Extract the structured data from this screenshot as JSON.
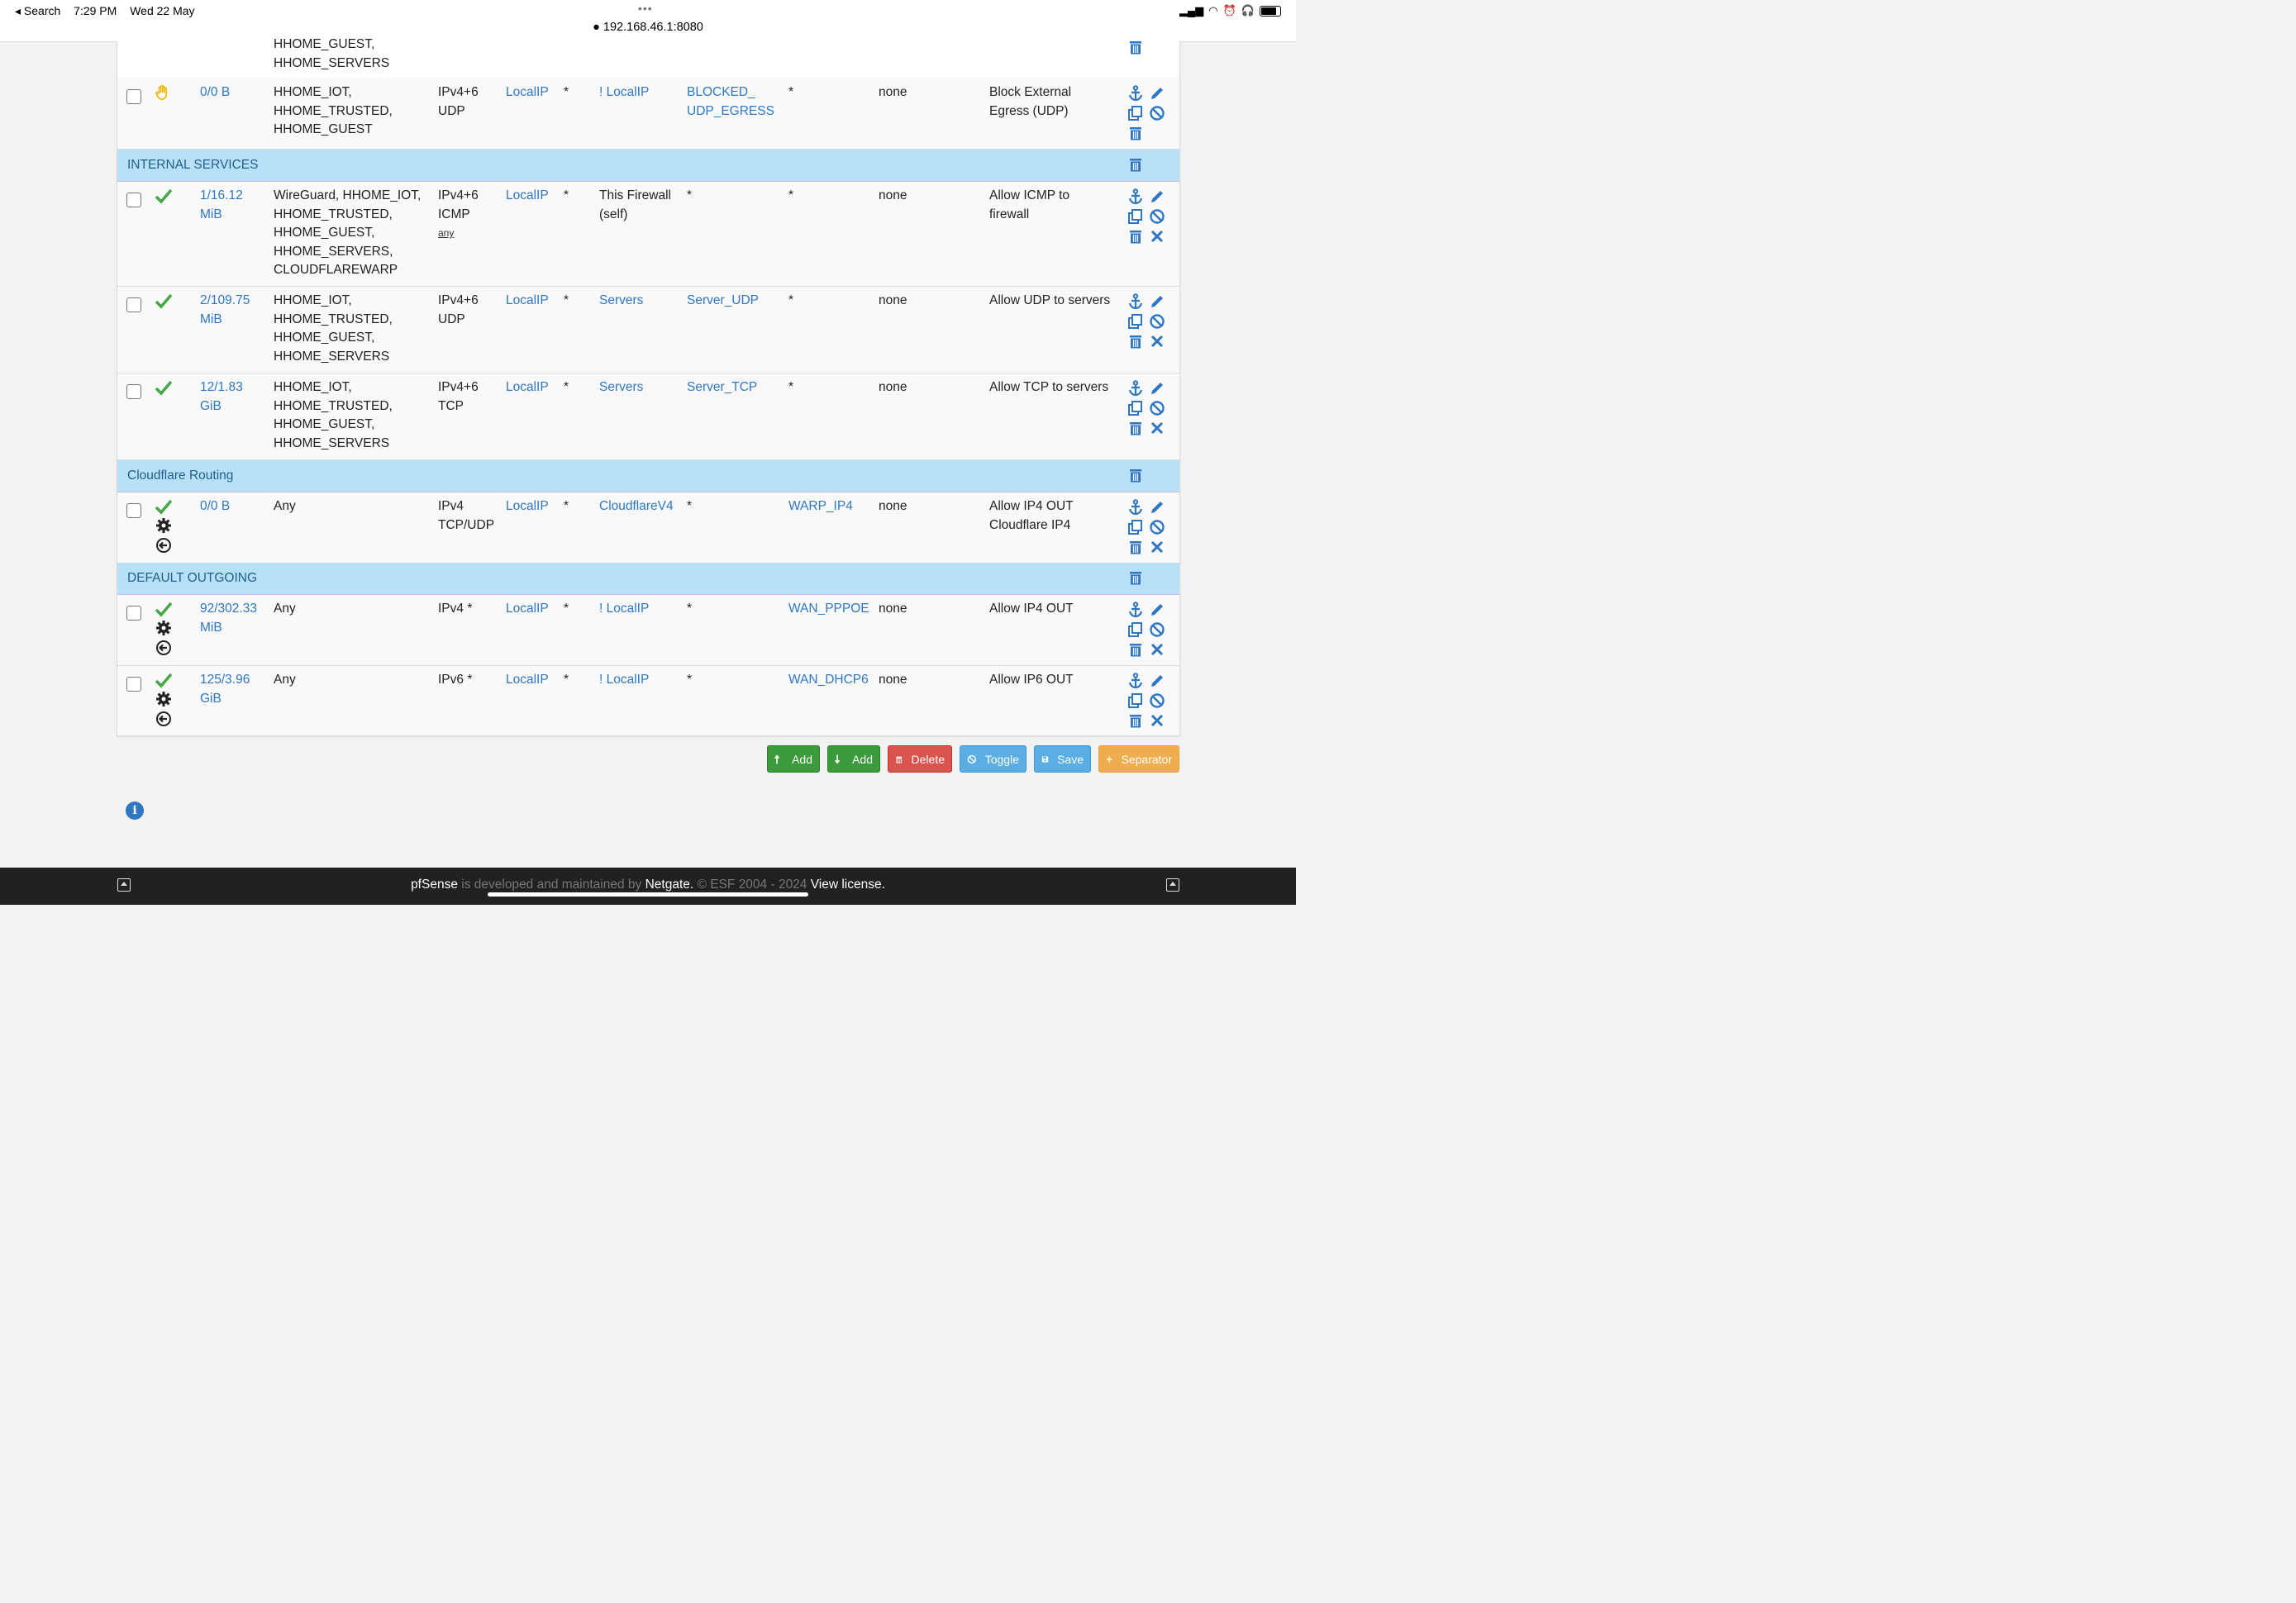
{
  "status_bar": {
    "back": "◂ Search",
    "time": "7:29 PM",
    "date": "Wed 22 May",
    "dots": "•••",
    "url": "192.168.46.1:8080"
  },
  "top_partial": {
    "interfaces": [
      "HHOME_GUEST,",
      "HHOME_SERVERS"
    ]
  },
  "rows": [
    {
      "id": "r1",
      "state": "hand",
      "states": "0/0 B",
      "interfaces": [
        "HHOME_IOT,",
        "HHOME_TRUSTED,",
        "HHOME_GUEST"
      ],
      "protocol": [
        "IPv4+6",
        "UDP"
      ],
      "source": "LocalIP",
      "port": "*",
      "destination": "! LocalIP",
      "dest_port": [
        "BLOCKED_",
        "UDP_EGRESS"
      ],
      "gateway": "*",
      "queue": "none",
      "description": [
        "Block External",
        "Egress (UDP)"
      ]
    },
    {
      "id": "r2",
      "states": "1/16.12 MiB",
      "states_lines": [
        "1/16.12",
        "MiB"
      ],
      "interfaces": [
        "WireGuard, HHOME_IOT,",
        "HHOME_TRUSTED,",
        "HHOME_GUEST,",
        "HHOME_SERVERS,",
        "CLOUDFLAREWARP"
      ],
      "protocol": [
        "IPv4+6",
        "ICMP"
      ],
      "icmp_any": "any",
      "source": "LocalIP",
      "port": "*",
      "destination": [
        "This Firewall",
        "(self)"
      ],
      "dest_port": "*",
      "gateway": "*",
      "queue": "none",
      "description": [
        "Allow ICMP to",
        "firewall"
      ]
    },
    {
      "id": "r3",
      "states_lines": [
        "2/109.75",
        "MiB"
      ],
      "interfaces": [
        "HHOME_IOT,",
        "HHOME_TRUSTED,",
        "HHOME_GUEST,",
        "HHOME_SERVERS"
      ],
      "protocol": [
        "IPv4+6",
        "UDP"
      ],
      "source": "LocalIP",
      "port": "*",
      "destination": "Servers",
      "dest_port": "Server_UDP",
      "gateway": "*",
      "queue": "none",
      "description": [
        "Allow UDP to servers"
      ]
    },
    {
      "id": "r4",
      "states_lines": [
        "12/1.83",
        "GiB"
      ],
      "interfaces": [
        "HHOME_IOT,",
        "HHOME_TRUSTED,",
        "HHOME_GUEST,",
        "HHOME_SERVERS"
      ],
      "protocol": [
        "IPv4+6",
        "TCP"
      ],
      "source": "LocalIP",
      "port": "*",
      "destination": "Servers",
      "dest_port": "Server_TCP",
      "gateway": "*",
      "queue": "none",
      "description": [
        "Allow TCP to servers"
      ]
    },
    {
      "id": "r5",
      "states_lines": [
        "0/0 B"
      ],
      "interfaces": [
        "Any"
      ],
      "protocol": [
        "IPv4",
        "TCP/UDP"
      ],
      "source": "LocalIP",
      "port": "*",
      "destination": "CloudflareV4",
      "dest_port": "*",
      "gateway": "WARP_IP4",
      "queue": "none",
      "description": [
        "Allow IP4 OUT",
        "Cloudflare IP4"
      ]
    },
    {
      "id": "r6",
      "states_lines": [
        "92/302.33",
        "MiB"
      ],
      "interfaces": [
        "Any"
      ],
      "protocol": [
        "IPv4 *"
      ],
      "source": "LocalIP",
      "port": "*",
      "destination": "! LocalIP",
      "dest_port": "*",
      "gateway": "WAN_PPPOE",
      "queue": "none",
      "description": [
        "Allow IP4 OUT"
      ]
    },
    {
      "id": "r7",
      "states_lines": [
        "125/3.96",
        "GiB"
      ],
      "interfaces": [
        "Any"
      ],
      "protocol": [
        "IPv6 *"
      ],
      "source": "LocalIP",
      "port": "*",
      "destination": "! LocalIP",
      "dest_port": "*",
      "gateway": "WAN_DHCP6",
      "queue": "none",
      "description": [
        "Allow IP6 OUT"
      ]
    }
  ],
  "separators": {
    "internal": "INTERNAL SERVICES",
    "cloudflare": "Cloudflare Routing",
    "default": "DEFAULT OUTGOING"
  },
  "buttons": {
    "add_top": "Add",
    "add_bottom": "Add",
    "delete": "Delete",
    "toggle": "Toggle",
    "save": "Save",
    "separator": "Separator"
  },
  "footer": {
    "brand": "pfSense",
    "mid": " is developed and maintained by ",
    "company": "Netgate.",
    "copy": " © ESF 2004 - 2024 ",
    "license": "View license."
  },
  "colors": {
    "link": "#2f77c2",
    "separator_bg": "#b8e1f9",
    "green": "#3b9a3b",
    "red": "#d9534f",
    "blue": "#5aaee3",
    "orange": "#f0ad4e"
  }
}
